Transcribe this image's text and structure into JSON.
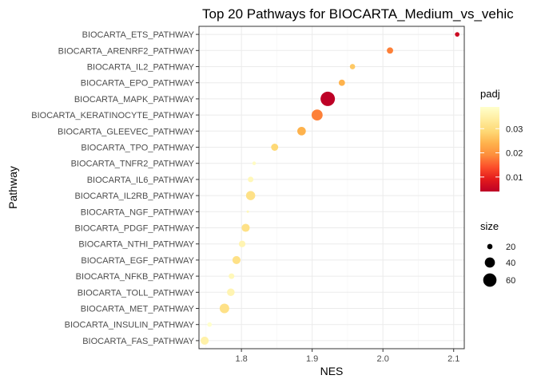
{
  "chart_data": {
    "type": "scatter",
    "title": "Top 20 Pathways for  BIOCARTA_Medium_vs_vehic",
    "xlabel": "NES",
    "ylabel": "Pathway",
    "xlim": [
      1.74,
      2.115
    ],
    "xticks": [
      1.8,
      1.9,
      2.0,
      2.1
    ],
    "xtick_labels": [
      "1.8",
      "1.9",
      "2.0",
      "2.1"
    ],
    "grid": true,
    "categories": [
      "BIOCARTA_ETS_PATHWAY",
      "BIOCARTA_ARENRF2_PATHWAY",
      "BIOCARTA_IL2_PATHWAY",
      "BIOCARTA_EPO_PATHWAY",
      "BIOCARTA_MAPK_PATHWAY",
      "BIOCARTA_KERATINOCYTE_PATHWAY",
      "BIOCARTA_GLEEVEC_PATHWAY",
      "BIOCARTA_TPO_PATHWAY",
      "BIOCARTA_TNFR2_PATHWAY",
      "BIOCARTA_IL6_PATHWAY",
      "BIOCARTA_IL2RB_PATHWAY",
      "BIOCARTA_NGF_PATHWAY",
      "BIOCARTA_PDGF_PATHWAY",
      "BIOCARTA_NTHI_PATHWAY",
      "BIOCARTA_EGF_PATHWAY",
      "BIOCARTA_NFKB_PATHWAY",
      "BIOCARTA_TOLL_PATHWAY",
      "BIOCARTA_MET_PATHWAY",
      "BIOCARTA_INSULIN_PATHWAY",
      "BIOCARTA_FAS_PATHWAY"
    ],
    "points": [
      {
        "pathway": "BIOCARTA_ETS_PATHWAY",
        "nes": 2.105,
        "padj": 0.006,
        "size": 18
      },
      {
        "pathway": "BIOCARTA_ARENRF2_PATHWAY",
        "nes": 2.01,
        "padj": 0.018,
        "size": 23
      },
      {
        "pathway": "BIOCARTA_IL2_PATHWAY",
        "nes": 1.957,
        "padj": 0.027,
        "size": 20
      },
      {
        "pathway": "BIOCARTA_EPO_PATHWAY",
        "nes": 1.942,
        "padj": 0.024,
        "size": 23
      },
      {
        "pathway": "BIOCARTA_MAPK_PATHWAY",
        "nes": 1.922,
        "padj": 0.004,
        "size": 68
      },
      {
        "pathway": "BIOCARTA_KERATINOCYTE_PATHWAY",
        "nes": 1.907,
        "padj": 0.018,
        "size": 45
      },
      {
        "pathway": "BIOCARTA_GLEEVEC_PATHWAY",
        "nes": 1.885,
        "padj": 0.024,
        "size": 32
      },
      {
        "pathway": "BIOCARTA_TPO_PATHWAY",
        "nes": 1.847,
        "padj": 0.029,
        "size": 26
      },
      {
        "pathway": "BIOCARTA_TNFR2_PATHWAY",
        "nes": 1.818,
        "padj": 0.038,
        "size": 16
      },
      {
        "pathway": "BIOCARTA_IL6_PATHWAY",
        "nes": 1.813,
        "padj": 0.037,
        "size": 21
      },
      {
        "pathway": "BIOCARTA_IL2RB_PATHWAY",
        "nes": 1.813,
        "padj": 0.031,
        "size": 35
      },
      {
        "pathway": "BIOCARTA_NGF_PATHWAY",
        "nes": 1.809,
        "padj": 0.037,
        "size": 14
      },
      {
        "pathway": "BIOCARTA_PDGF_PATHWAY",
        "nes": 1.806,
        "padj": 0.031,
        "size": 30
      },
      {
        "pathway": "BIOCARTA_NTHI_PATHWAY",
        "nes": 1.801,
        "padj": 0.036,
        "size": 24
      },
      {
        "pathway": "BIOCARTA_EGF_PATHWAY",
        "nes": 1.793,
        "padj": 0.031,
        "size": 30
      },
      {
        "pathway": "BIOCARTA_NFKB_PATHWAY",
        "nes": 1.786,
        "padj": 0.037,
        "size": 21
      },
      {
        "pathway": "BIOCARTA_TOLL_PATHWAY",
        "nes": 1.785,
        "padj": 0.036,
        "size": 28
      },
      {
        "pathway": "BIOCARTA_MET_PATHWAY",
        "nes": 1.776,
        "padj": 0.031,
        "size": 37
      },
      {
        "pathway": "BIOCARTA_INSULIN_PATHWAY",
        "nes": 1.755,
        "padj": 0.039,
        "size": 18
      },
      {
        "pathway": "BIOCARTA_FAS_PATHWAY",
        "nes": 1.748,
        "padj": 0.035,
        "size": 30
      }
    ],
    "color_legend": {
      "title": "padj",
      "range": [
        0.004,
        0.039
      ],
      "ticks": [
        0.01,
        0.02,
        0.03
      ],
      "tick_labels": [
        "0.01",
        "0.02",
        "0.03"
      ],
      "colors": [
        "#bd0026",
        "#e31a1c",
        "#fc4e2a",
        "#fd8d3c",
        "#feb24c",
        "#fed976",
        "#ffeda0",
        "#ffffcc"
      ],
      "placement": "right"
    },
    "size_legend": {
      "title": "size",
      "range": [
        14,
        68
      ],
      "values": [
        20,
        40,
        60
      ],
      "labels": [
        "20",
        "40",
        "60"
      ],
      "placement": "right"
    },
    "colors": {
      "panel_background": "#ffffff",
      "grid_major": "#ebebeb",
      "grid_minor": "#f5f5f5",
      "panel_border": "#333333",
      "legend_point": "#000000"
    }
  }
}
